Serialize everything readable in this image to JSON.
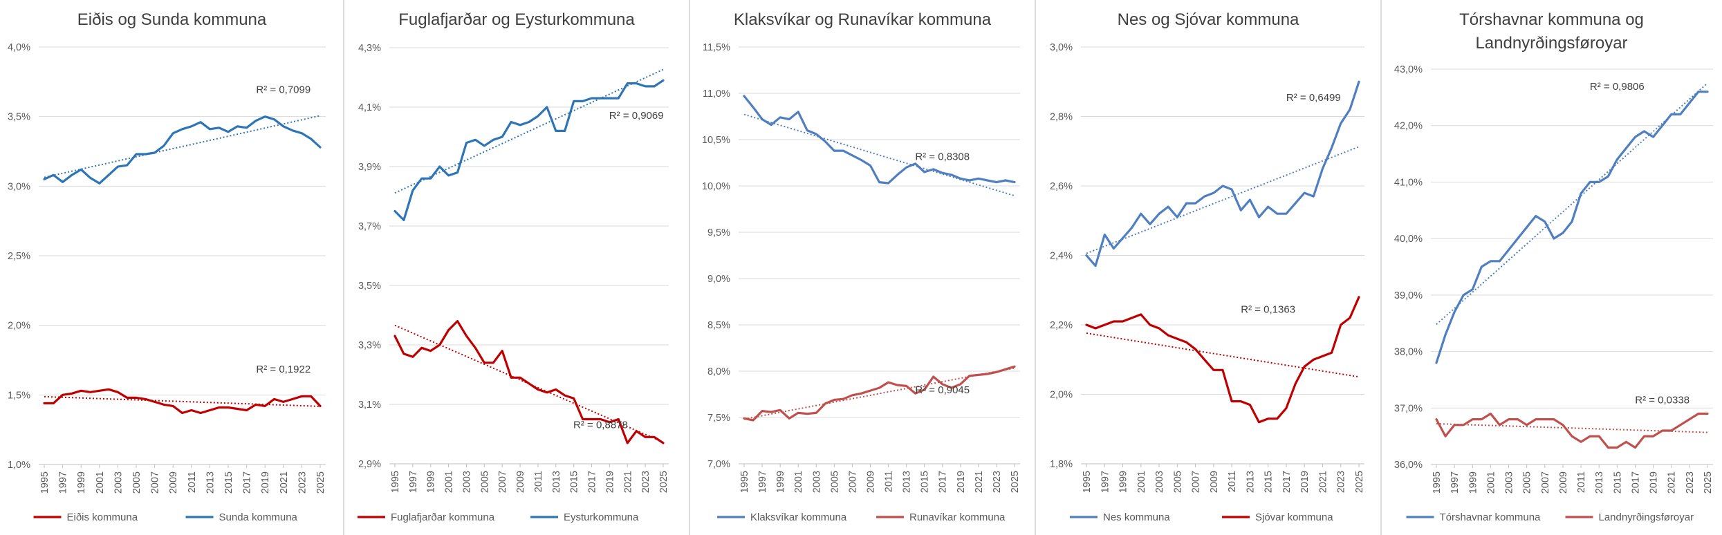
{
  "years": [
    "1995",
    "1996",
    "1997",
    "1998",
    "1999",
    "2000",
    "2001",
    "2002",
    "2003",
    "2004",
    "2005",
    "2006",
    "2007",
    "2008",
    "2009",
    "2010",
    "2011",
    "2012",
    "2013",
    "2014",
    "2015",
    "2016",
    "2017",
    "2018",
    "2019",
    "2020",
    "2021",
    "2022",
    "2023",
    "2024",
    "2025"
  ],
  "chart_data": [
    {
      "type": "line",
      "title": [
        "Eiðis og Sunda kommuna"
      ],
      "ylim": [
        1.0,
        4.0
      ],
      "ystep": 0.5,
      "ydecimals": 1,
      "trendline": "linear",
      "yticks_label_suffix": "%",
      "series": [
        {
          "name": "Eiðis kommuna",
          "color": "#c00000",
          "r2_label": "R² = 0,1922",
          "r2_at": [
            2021,
            1.66
          ],
          "values": [
            1.44,
            1.44,
            1.5,
            1.51,
            1.53,
            1.52,
            1.53,
            1.54,
            1.52,
            1.48,
            1.48,
            1.47,
            1.45,
            1.43,
            1.42,
            1.37,
            1.39,
            1.37,
            1.39,
            1.41,
            1.41,
            1.4,
            1.39,
            1.43,
            1.42,
            1.47,
            1.45,
            1.47,
            1.49,
            1.49,
            1.42
          ]
        },
        {
          "name": "Sunda kommuna",
          "color": "#2e75b6",
          "r2_label": "R² = 0,7099",
          "r2_at": [
            2021,
            3.67
          ],
          "values": [
            3.05,
            3.08,
            3.03,
            3.08,
            3.12,
            3.06,
            3.02,
            3.08,
            3.14,
            3.15,
            3.23,
            3.23,
            3.24,
            3.29,
            3.38,
            3.41,
            3.43,
            3.46,
            3.41,
            3.42,
            3.39,
            3.43,
            3.42,
            3.47,
            3.5,
            3.48,
            3.43,
            3.4,
            3.38,
            3.34,
            3.28
          ]
        }
      ]
    },
    {
      "type": "line",
      "title": [
        "Fuglafjarðar og Eysturkommuna"
      ],
      "ylim": [
        2.9,
        4.3
      ],
      "ystep": 0.2,
      "ydecimals": 1,
      "trendline": "linear",
      "yticks_label_suffix": "%",
      "series": [
        {
          "name": "Fuglafjarðar kommuna",
          "color": "#c00000",
          "r2_label": "R² = 0,8878",
          "r2_at": [
            2018,
            3.02
          ],
          "values": [
            3.33,
            3.27,
            3.26,
            3.29,
            3.28,
            3.3,
            3.35,
            3.38,
            3.33,
            3.29,
            3.24,
            3.24,
            3.28,
            3.19,
            3.19,
            3.17,
            3.15,
            3.14,
            3.15,
            3.13,
            3.12,
            3.05,
            3.05,
            3.05,
            3.04,
            3.05,
            2.97,
            3.01,
            2.99,
            2.99,
            2.97
          ]
        },
        {
          "name": "Eysturkommuna",
          "color": "#2e75b6",
          "r2_label": "R² = 0,9069",
          "r2_at": [
            2022,
            4.06
          ],
          "values": [
            3.75,
            3.72,
            3.82,
            3.86,
            3.86,
            3.9,
            3.87,
            3.88,
            3.98,
            3.99,
            3.97,
            3.99,
            4.0,
            4.05,
            4.04,
            4.05,
            4.07,
            4.1,
            4.02,
            4.02,
            4.12,
            4.12,
            4.13,
            4.13,
            4.13,
            4.13,
            4.18,
            4.18,
            4.17,
            4.17,
            4.19
          ]
        }
      ]
    },
    {
      "type": "line",
      "title": [
        "Klaksvíkar og Runavíkar kommuna"
      ],
      "ylim": [
        7.0,
        11.5
      ],
      "ystep": 0.5,
      "ydecimals": 1,
      "trendline": "linear",
      "yticks_label_suffix": "%",
      "series": [
        {
          "name": "Klaksvíkar kommuna",
          "color": "#4f7fc0",
          "r2_label": "R² = 0,8308",
          "r2_at": [
            2017,
            10.28
          ],
          "values": [
            10.97,
            10.85,
            10.72,
            10.66,
            10.74,
            10.72,
            10.8,
            10.6,
            10.56,
            10.48,
            10.38,
            10.38,
            10.33,
            10.28,
            10.22,
            10.04,
            10.03,
            10.12,
            10.2,
            10.24,
            10.15,
            10.18,
            10.14,
            10.12,
            10.08,
            10.06,
            10.08,
            10.06,
            10.04,
            10.06,
            10.04
          ]
        },
        {
          "name": "Runavíkar kommuna",
          "color": "#c0504d",
          "r2_label": "R² = 0,9045",
          "r2_at": [
            2017,
            7.76
          ],
          "values": [
            7.49,
            7.47,
            7.57,
            7.56,
            7.58,
            7.49,
            7.55,
            7.54,
            7.55,
            7.65,
            7.69,
            7.7,
            7.74,
            7.76,
            7.79,
            7.82,
            7.88,
            7.85,
            7.84,
            7.76,
            7.8,
            7.94,
            7.86,
            7.82,
            7.86,
            7.95,
            7.96,
            7.97,
            7.99,
            8.02,
            8.05
          ]
        }
      ]
    },
    {
      "type": "line",
      "title": [
        "Nes og Sjóvar kommuna"
      ],
      "ylim": [
        1.8,
        3.0
      ],
      "ystep": 0.2,
      "ydecimals": 1,
      "trendline": "linear",
      "yticks_label_suffix": "%",
      "series": [
        {
          "name": "Nes kommuna",
          "color": "#4f7fc0",
          "r2_label": "R² = 0,6499",
          "r2_at": [
            2020,
            2.845
          ],
          "values": [
            2.4,
            2.37,
            2.46,
            2.42,
            2.45,
            2.48,
            2.52,
            2.49,
            2.52,
            2.54,
            2.51,
            2.55,
            2.55,
            2.57,
            2.58,
            2.6,
            2.59,
            2.53,
            2.56,
            2.51,
            2.54,
            2.52,
            2.52,
            2.55,
            2.58,
            2.57,
            2.65,
            2.71,
            2.78,
            2.82,
            2.9
          ]
        },
        {
          "name": "Sjóvar kommuna",
          "color": "#c00000",
          "r2_label": "R² = 0,1363",
          "r2_at": [
            2015,
            2.235
          ],
          "values": [
            2.2,
            2.19,
            2.2,
            2.21,
            2.21,
            2.22,
            2.23,
            2.2,
            2.19,
            2.17,
            2.16,
            2.15,
            2.13,
            2.1,
            2.07,
            2.07,
            1.98,
            1.98,
            1.97,
            1.92,
            1.93,
            1.93,
            1.96,
            2.03,
            2.08,
            2.1,
            2.11,
            2.12,
            2.2,
            2.22,
            2.28
          ]
        }
      ]
    },
    {
      "type": "line",
      "title": [
        "Tórshavnar kommuna og",
        "Landnyrðingsføroyar"
      ],
      "ylim": [
        36.0,
        43.0
      ],
      "ystep": 1.0,
      "ydecimals": 1,
      "trendline": "linear",
      "yticks_label_suffix": "%",
      "series": [
        {
          "name": "Tórshavnar kommuna",
          "color": "#4f7fc0",
          "r2_label": "R² = 0,9806",
          "r2_at": [
            2015,
            42.63
          ],
          "values": [
            37.8,
            38.3,
            38.7,
            39.0,
            39.1,
            39.5,
            39.6,
            39.6,
            39.8,
            40.0,
            40.2,
            40.4,
            40.3,
            40.0,
            40.1,
            40.3,
            40.8,
            41.0,
            41.0,
            41.1,
            41.4,
            41.6,
            41.8,
            41.9,
            41.8,
            42.0,
            42.2,
            42.2,
            42.4,
            42.6,
            42.6
          ]
        },
        {
          "name": "Landnyrðingsføroyar",
          "color": "#c0504d",
          "r2_label": "R² = 0,0338",
          "r2_at": [
            2020,
            37.08
          ],
          "values": [
            36.8,
            36.5,
            36.7,
            36.7,
            36.8,
            36.8,
            36.9,
            36.7,
            36.8,
            36.8,
            36.7,
            36.8,
            36.8,
            36.8,
            36.7,
            36.5,
            36.4,
            36.5,
            36.5,
            36.3,
            36.3,
            36.4,
            36.3,
            36.5,
            36.5,
            36.6,
            36.6,
            36.7,
            36.8,
            36.9,
            36.9
          ]
        }
      ]
    }
  ]
}
